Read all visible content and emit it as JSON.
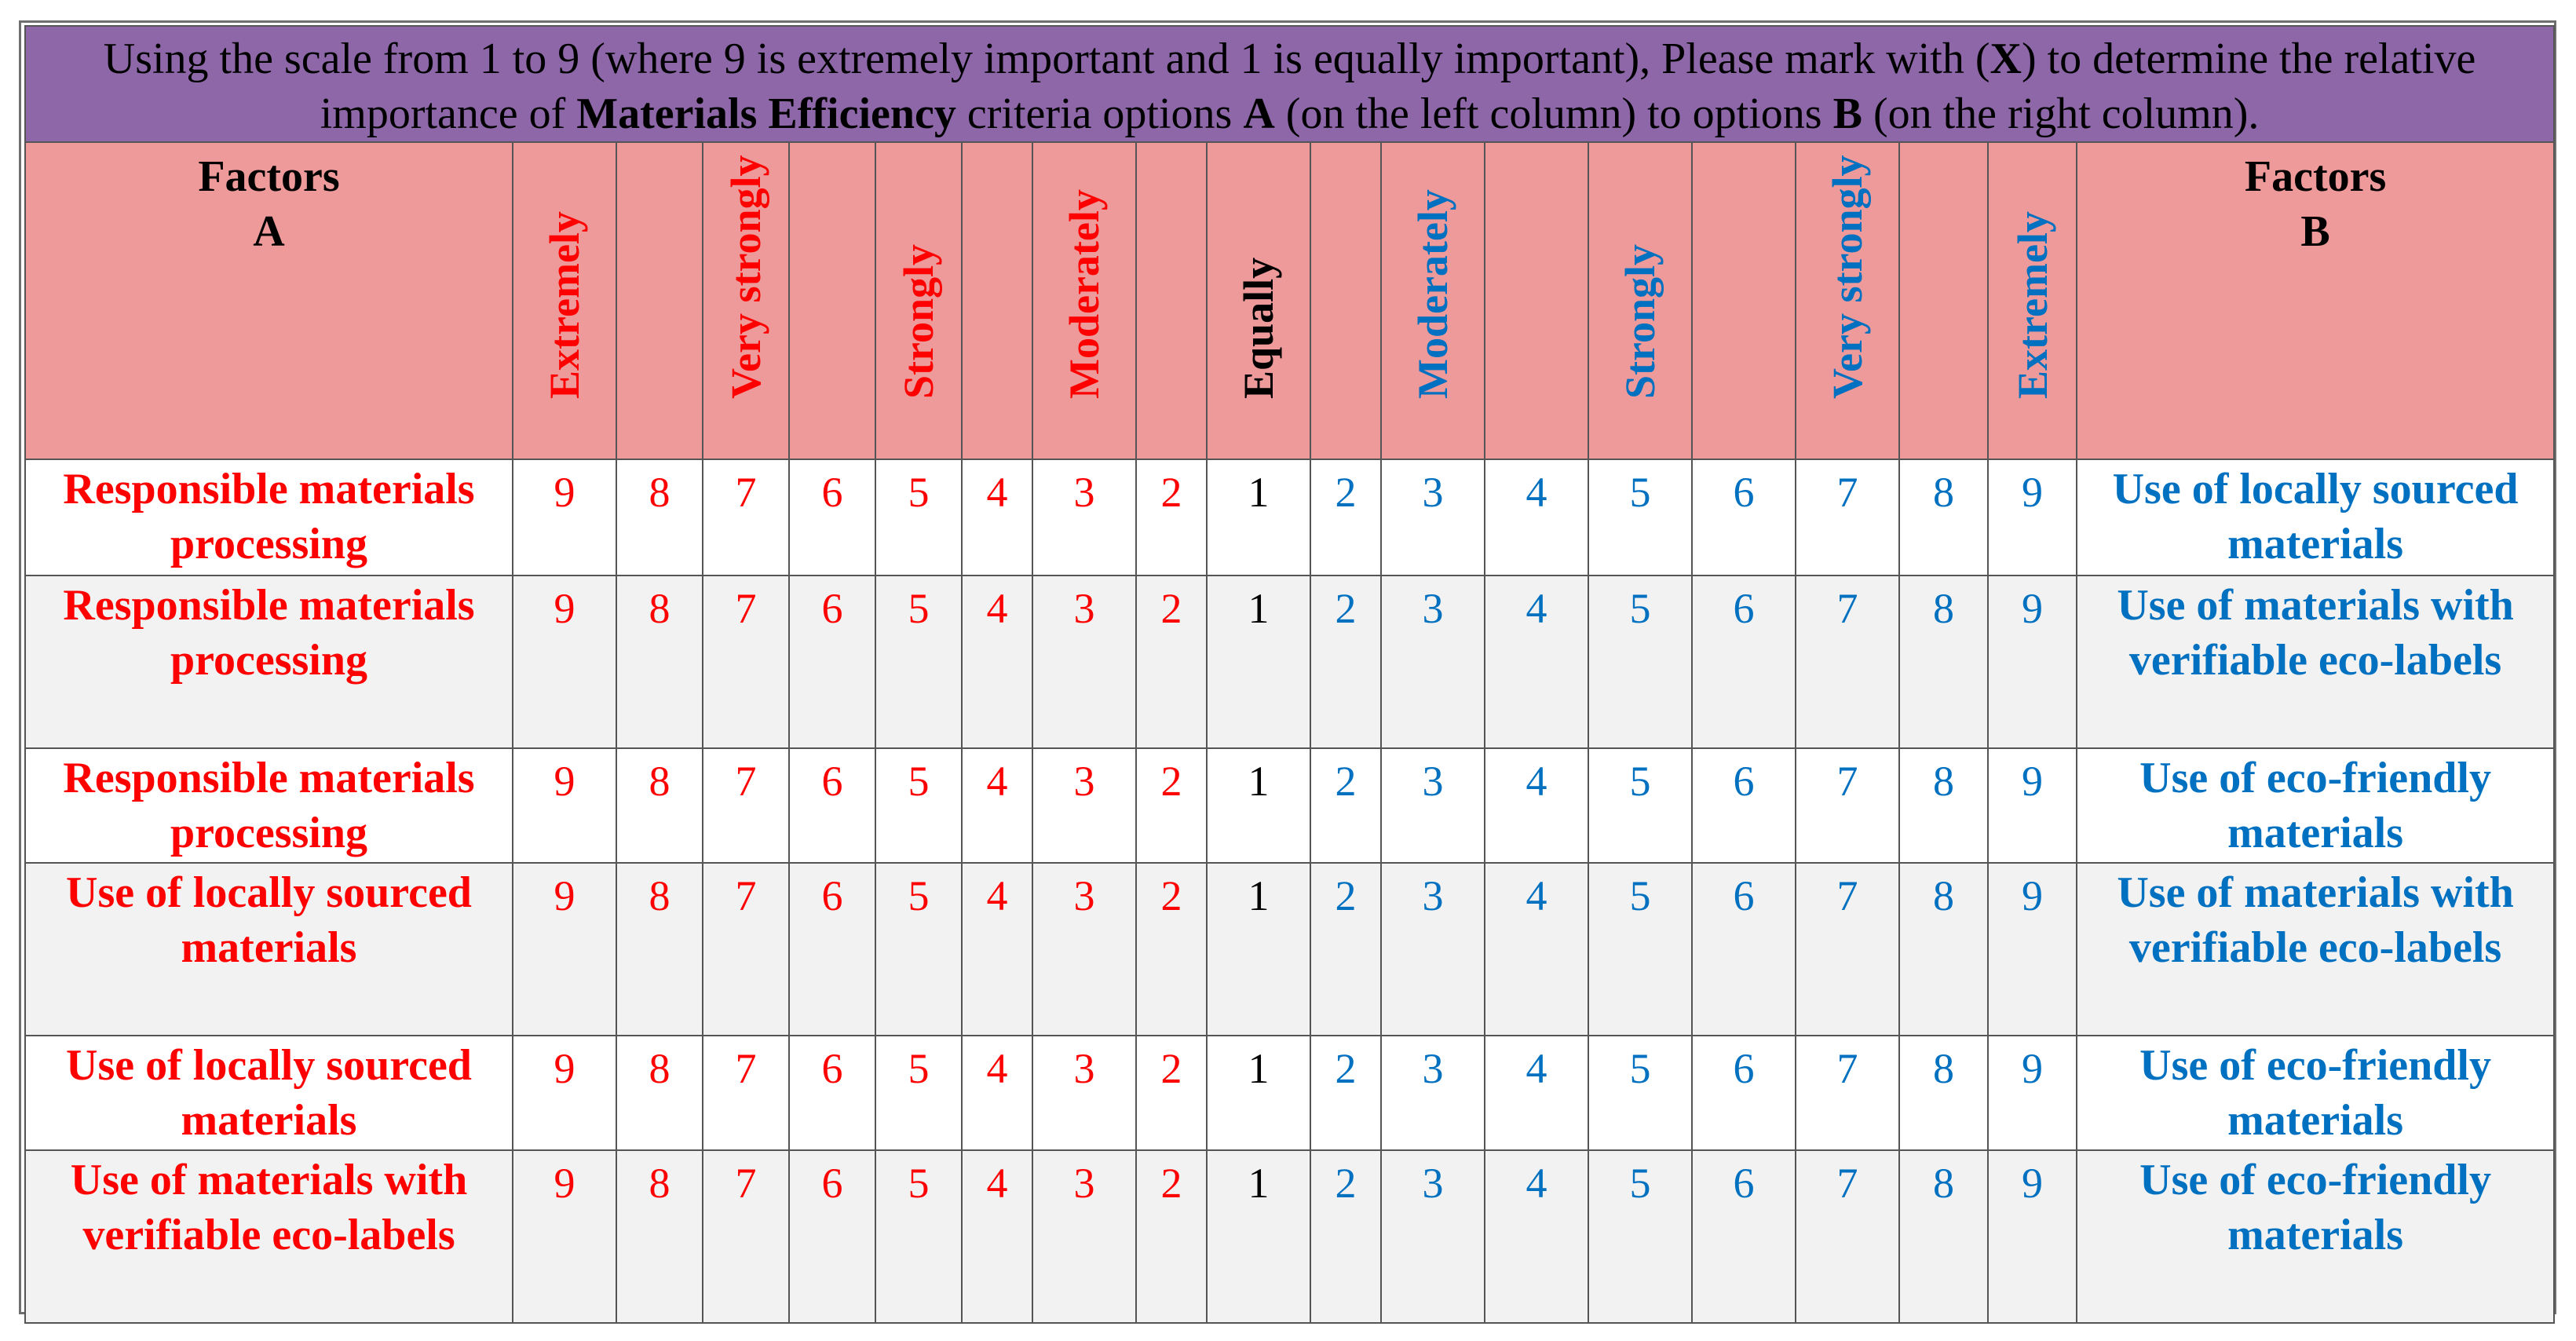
{
  "instruction": {
    "part1": "Using the scale from 1 to 9 (where 9 is extremely important and 1 is equally important), Please mark with (",
    "bold_x": "X",
    "part2": ") to determine the relative importance of ",
    "bold_criteria": "Materials Efficiency",
    "part3": " criteria options ",
    "bold_a": "A",
    "part4": " (on the left column) to options ",
    "bold_b": "B",
    "part5": " (on the right column)."
  },
  "header": {
    "factors_a_line1": "Factors",
    "factors_a_line2": "A",
    "factors_b_line1": "Factors",
    "factors_b_line2": "B",
    "scale_labels": [
      "Extremely",
      "",
      "Very strongly",
      "",
      "Strongly",
      "",
      "Moderately",
      "",
      "Equally",
      "",
      "Moderately",
      "",
      "Strongly",
      "",
      "Very strongly",
      "",
      "Extremely"
    ]
  },
  "scale": [
    "9",
    "8",
    "7",
    "6",
    "5",
    "4",
    "3",
    "2",
    "1",
    "2",
    "3",
    "4",
    "5",
    "6",
    "7",
    "8",
    "9"
  ],
  "rows": [
    {
      "a": "Responsible materials processing",
      "b": "Use of locally sourced materials"
    },
    {
      "a": "Responsible materials processing",
      "b": "Use of materials with verifiable eco-labels"
    },
    {
      "a": "Responsible materials processing",
      "b": "Use of eco-friendly materials"
    },
    {
      "a": "Use of locally sourced materials",
      "b": "Use of materials with verifiable eco-labels"
    },
    {
      "a": "Use of locally sourced materials",
      "b": "Use of eco-friendly materials"
    },
    {
      "a": "Use of materials with verifiable eco-labels",
      "b": "Use of eco-friendly materials"
    }
  ],
  "colors": {
    "header_purple": "#8d67a8",
    "header_pink": "#ee9a9a",
    "left_red": "#ff0000",
    "right_blue": "#0070c0",
    "equal_black": "#000000",
    "alt_row": "#f2f2f2"
  }
}
